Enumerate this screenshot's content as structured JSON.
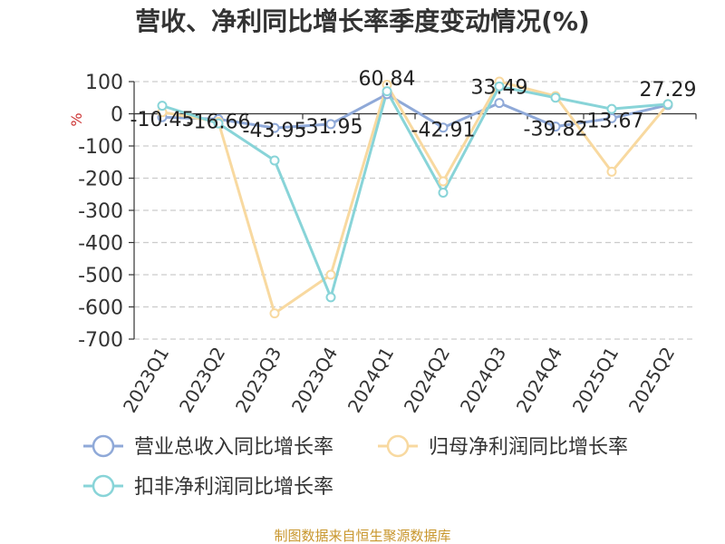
{
  "chart_data": {
    "type": "line",
    "title": "营收、净利同比增长率季度变动情况(%)",
    "ylabel": "%",
    "categories": [
      "2023Q1",
      "2023Q2",
      "2023Q3",
      "2023Q4",
      "2024Q1",
      "2024Q2",
      "2024Q3",
      "2024Q4",
      "2025Q1",
      "2025Q2"
    ],
    "ylim": [
      -700,
      100
    ],
    "yticks": [
      100,
      0,
      -100,
      -200,
      -300,
      -400,
      -500,
      -600,
      -700
    ],
    "grid": true,
    "legend_position": "bottom",
    "series": [
      {
        "name": "营业总收入同比增长率",
        "color": "#8fa9d8",
        "values": [
          -10.45,
          -16.66,
          -43.95,
          -31.95,
          60.84,
          -42.91,
          33.49,
          -39.82,
          -13.67,
          27.29
        ],
        "labels": [
          "-10.45",
          "-16.66",
          "-43.95",
          "-31.95",
          "60.84",
          "-42.91",
          "33.49",
          "-39.82",
          "-13.67",
          "27.29"
        ]
      },
      {
        "name": "归母净利润同比增长率",
        "color": "#f8d9a0",
        "values": [
          5,
          -25,
          -620,
          -500,
          90,
          -210,
          100,
          55,
          -180,
          30
        ]
      },
      {
        "name": "扣非净利润同比增长率",
        "color": "#88d4d8",
        "values": [
          25,
          -30,
          -145,
          -570,
          70,
          -245,
          85,
          50,
          15,
          30
        ]
      }
    ]
  },
  "source": "制图数据来自恒生聚源数据库"
}
